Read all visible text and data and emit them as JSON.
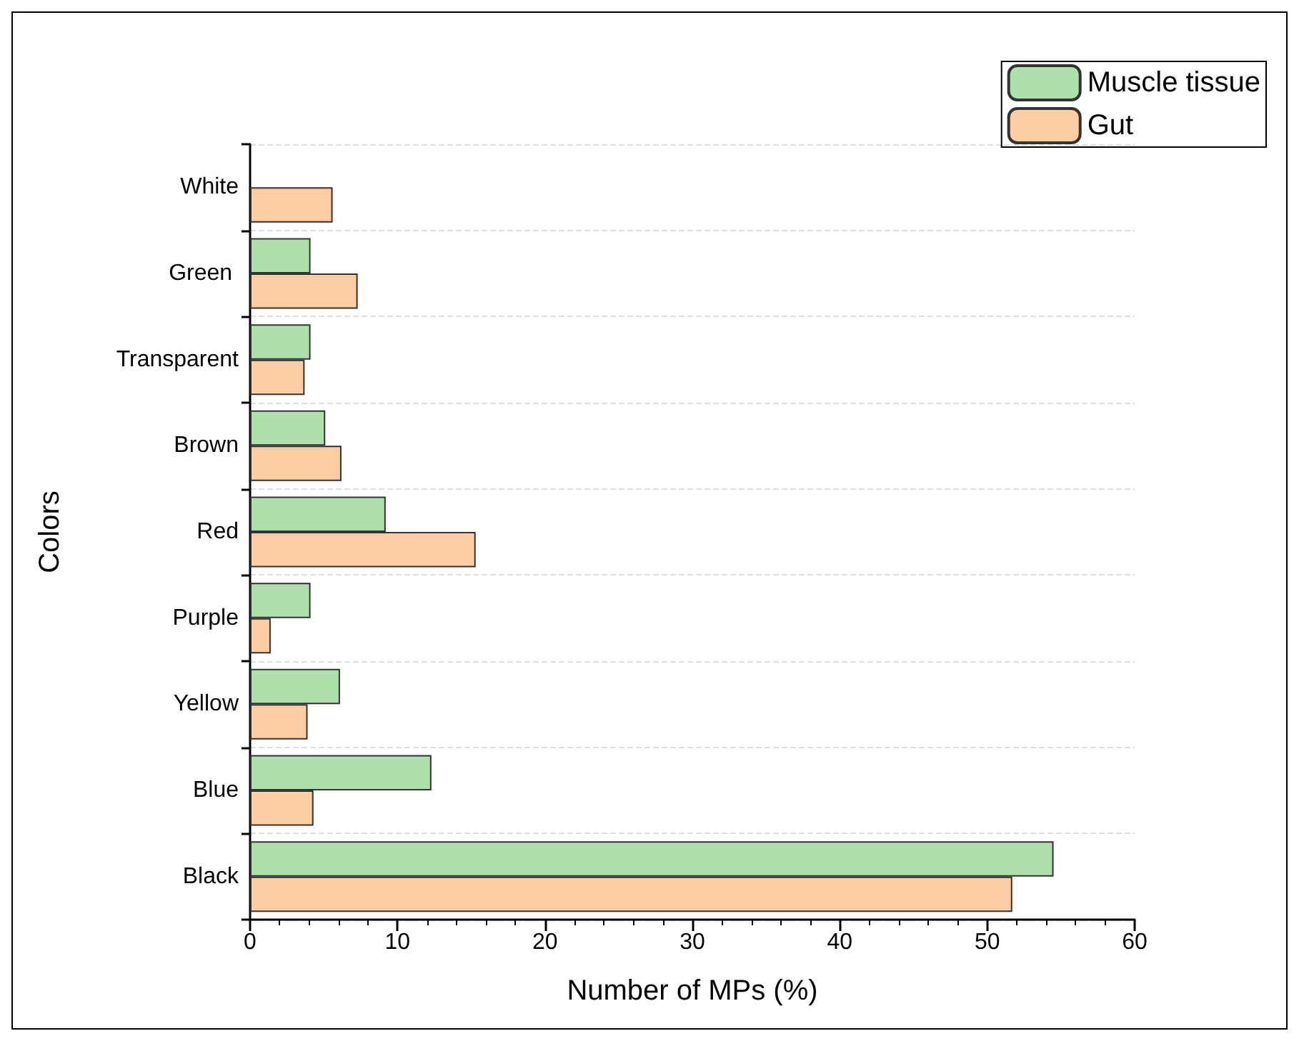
{
  "chart_data": {
    "type": "bar",
    "orientation": "horizontal",
    "xlabel": "Number of MPs (%)",
    "ylabel": "Colors",
    "categories": [
      "White",
      "Green ",
      "Transparent",
      "Brown",
      "Red",
      "Purple",
      "Yellow",
      "Blue",
      "Black"
    ],
    "series": [
      {
        "name": "Muscle tissue",
        "color": "#aedfad",
        "values": [
          null,
          4.1,
          4.1,
          5.1,
          9.2,
          4.1,
          6.1,
          12.3,
          54.5
        ]
      },
      {
        "name": "Gut",
        "color": "#ffcda3",
        "values": [
          5.6,
          7.3,
          3.7,
          6.2,
          15.3,
          1.4,
          3.9,
          4.3,
          51.7
        ]
      }
    ],
    "xlim": [
      0,
      60
    ],
    "xticks": [
      0,
      10,
      20,
      30,
      40,
      50,
      60
    ],
    "grid": "y",
    "legend": "top right"
  }
}
